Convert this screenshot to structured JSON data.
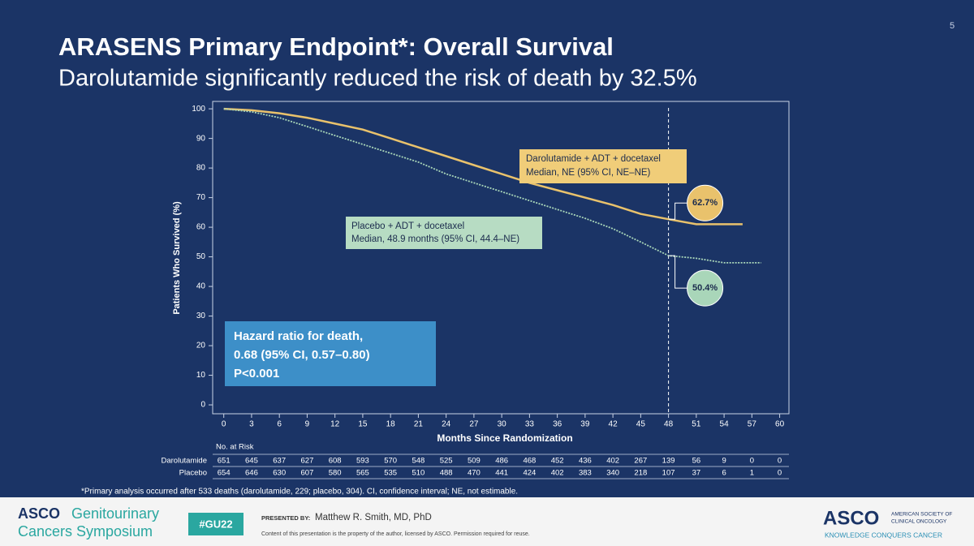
{
  "slide_number": "5",
  "title": "ARASENS Primary Endpoint*: Overall Survival",
  "subtitle": "Darolutamide significantly reduced the risk of death by 32.5%",
  "chart_data": {
    "type": "line",
    "xlabel": "Months Since Randomization",
    "ylabel": "Patients Who Survived (%)",
    "xlim": [
      -1.2,
      61
    ],
    "ylim": [
      -3,
      102.5
    ],
    "xticks": [
      0,
      3,
      6,
      9,
      12,
      15,
      18,
      21,
      24,
      27,
      30,
      33,
      36,
      39,
      42,
      45,
      48,
      51,
      54,
      57,
      60
    ],
    "yticks": [
      0,
      10,
      20,
      30,
      40,
      50,
      60,
      70,
      80,
      90,
      100
    ],
    "reference_x": 48,
    "x": [
      0,
      3,
      6,
      9,
      12,
      15,
      18,
      21,
      24,
      27,
      30,
      33,
      36,
      39,
      42,
      45,
      48,
      51,
      54,
      56,
      58
    ],
    "series": [
      {
        "name": "Darolutamide + ADT + docetaxel",
        "note": "Median, NE (95% CI, NE–NE)",
        "color": "#e9c26c",
        "values": [
          100,
          99.5,
          98.5,
          97,
          95,
          93,
          90,
          87,
          84,
          81,
          78,
          75,
          72.5,
          70,
          67.5,
          64.5,
          62.7,
          61,
          61,
          61,
          null
        ],
        "value_labels": [
          null,
          null,
          null,
          null,
          null,
          null,
          null,
          null,
          null,
          null,
          null,
          null,
          null,
          null,
          null,
          null,
          "62.7%",
          null,
          null,
          null,
          null
        ]
      },
      {
        "name": "Placebo + ADT + docetaxel",
        "note": "Median, 48.9 months (95% CI, 44.4–NE)",
        "color": "#a9d6b9",
        "values": [
          100,
          99,
          97,
          94,
          91,
          88,
          85,
          82,
          78,
          75,
          72,
          69,
          66,
          63,
          59.5,
          55,
          50.4,
          49.5,
          48,
          48,
          48
        ],
        "value_labels": [
          null,
          null,
          null,
          null,
          null,
          null,
          null,
          null,
          null,
          null,
          null,
          null,
          null,
          null,
          null,
          null,
          "50.4%",
          null,
          null,
          null,
          null
        ]
      }
    ],
    "hazard_box": [
      "Hazard ratio for death,",
      "0.68 (95% CI, 0.57–0.80)",
      "P<0.001"
    ],
    "risk_table": {
      "title": "No. at Risk",
      "rows": [
        {
          "label": "Darolutamide",
          "values": [
            651,
            645,
            637,
            627,
            608,
            593,
            570,
            548,
            525,
            509,
            486,
            468,
            452,
            436,
            402,
            267,
            139,
            56,
            9,
            0,
            0
          ]
        },
        {
          "label": "Placebo",
          "values": [
            654,
            646,
            630,
            607,
            580,
            565,
            535,
            510,
            488,
            470,
            441,
            424,
            402,
            383,
            340,
            218,
            107,
            37,
            6,
            1,
            0
          ]
        }
      ]
    }
  },
  "footnote": "*Primary analysis occurred after 533 deaths (darolutamide, 229; placebo, 304). CI, confidence interval; NE, not estimable.",
  "footer": {
    "logo_left": [
      "ASCO",
      "Genitourinary",
      "Cancers Symposium"
    ],
    "hashtag": "#GU22",
    "presented_by": "PRESENTED BY:",
    "presenter": "Matthew R. Smith, MD, PhD",
    "copyright": "Content of this presentation is the property of the author, licensed by ASCO. Permission required for reuse.",
    "logo_right": [
      "ASCO",
      "AMERICAN SOCIETY OF",
      "CLINICAL ONCOLOGY",
      "KNOWLEDGE CONQUERS CANCER"
    ]
  }
}
